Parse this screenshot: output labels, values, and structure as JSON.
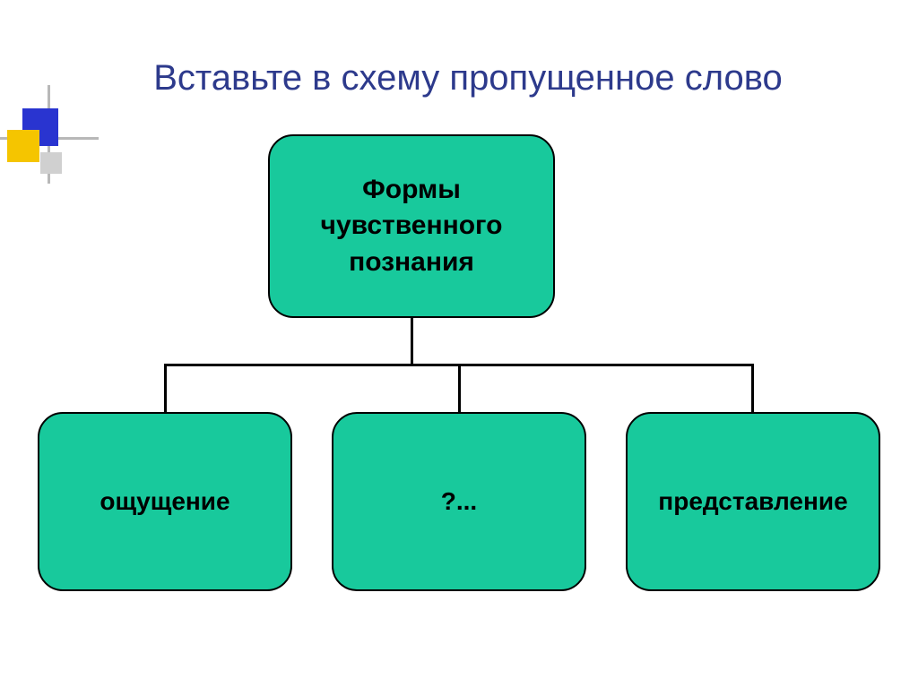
{
  "title": {
    "text": "Вставьте в схему пропущенное слово",
    "color": "#2d3a8c",
    "fontsize": 40,
    "fontweight": "normal"
  },
  "diagram": {
    "type": "tree",
    "node_fill": "#18c99c",
    "node_border": "#000000",
    "node_text_color": "#000000",
    "connector_color": "#000000",
    "root": {
      "label": "Формы чувственного познания",
      "fontsize": 30
    },
    "children": [
      {
        "label": "ощущение",
        "fontsize": 28
      },
      {
        "label": "?...",
        "fontsize": 28
      },
      {
        "label": "представление",
        "fontsize": 28
      }
    ]
  },
  "decoration": {
    "square_blue": "#2934d0",
    "square_yellow": "#f5c500",
    "square_gray": "#d0d0d0",
    "line_color": "#b8b8b8"
  },
  "background_color": "#ffffff"
}
